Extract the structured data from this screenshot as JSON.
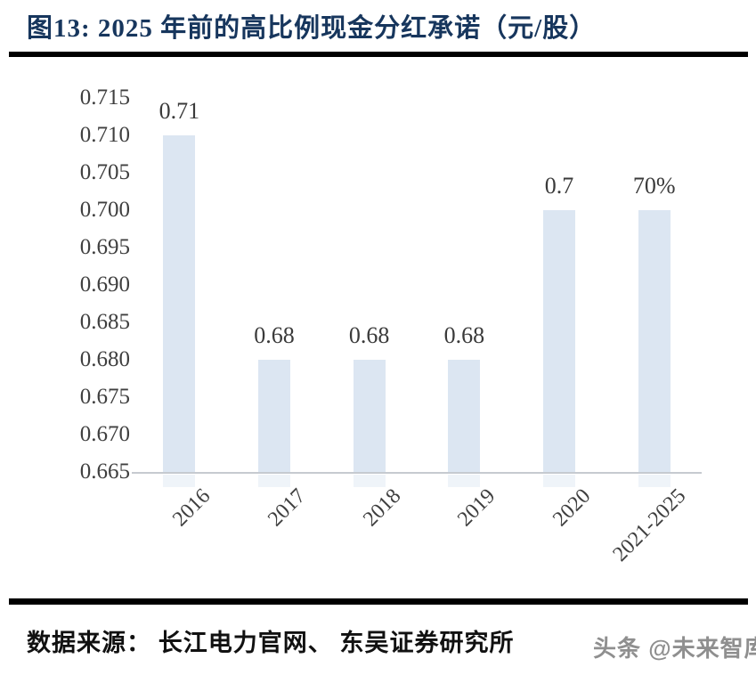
{
  "figure": {
    "title": "图13:  2025 年前的高比例现金分红承诺（元/股）"
  },
  "chart_data": {
    "type": "bar",
    "categories": [
      "2016",
      "2017",
      "2018",
      "2019",
      "2020",
      "2021-2025"
    ],
    "values": [
      0.71,
      0.68,
      0.68,
      0.68,
      0.7,
      0.7
    ],
    "data_labels": [
      "0.71",
      "0.68",
      "0.68",
      "0.68",
      "0.7",
      "70%"
    ],
    "y_ticks": [
      "0.715",
      "0.710",
      "0.705",
      "0.700",
      "0.695",
      "0.690",
      "0.685",
      "0.680",
      "0.675",
      "0.670",
      "0.665"
    ],
    "ylim": [
      0.665,
      0.715
    ],
    "title": "2025 年前的高比例现金分红承诺（元/股）",
    "xlabel": "",
    "ylabel": "",
    "grid": false,
    "legend_position": "none",
    "bar_color": "#dce6f2",
    "axis_line_color": "#c6cad0",
    "x_tick_rotation_deg": -45
  },
  "footer": {
    "source": "数据来源：  长江电力官网、  东吴证券研究所",
    "watermark": "头条 @未来智库"
  }
}
